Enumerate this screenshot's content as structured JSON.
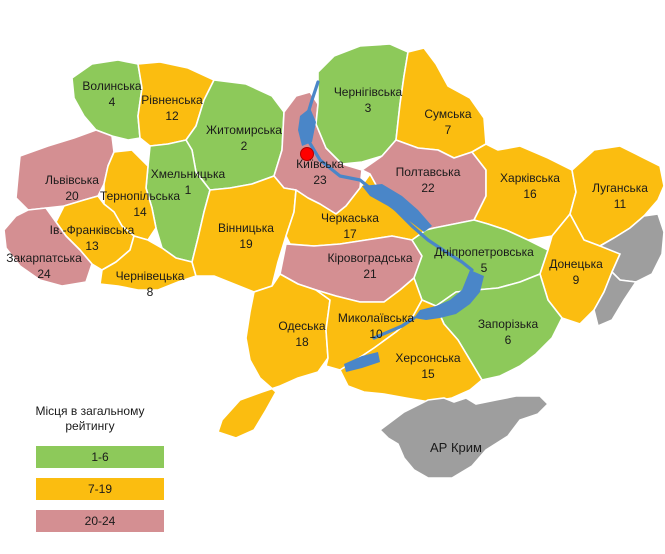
{
  "legend": {
    "title": "Місця в загальному рейтингу",
    "items": [
      {
        "label": "1-6",
        "color": "#8dc95a"
      },
      {
        "label": "7-19",
        "color": "#fbbd10"
      },
      {
        "label": "20-24",
        "color": "#d48f92"
      }
    ]
  },
  "colors": {
    "green": "#8dc95a",
    "orange": "#fbbd10",
    "pink": "#d48f92",
    "gray": "#9e9e9e",
    "water": "#4a86c8",
    "capital": "#ff0000"
  },
  "regions": [
    {
      "key": "volyn",
      "name": "Волинська",
      "rank": "4",
      "category": "green"
    },
    {
      "key": "rivne",
      "name": "Рівненська",
      "rank": "12",
      "category": "orange"
    },
    {
      "key": "zhytomyr",
      "name": "Житомирська",
      "rank": "2",
      "category": "green"
    },
    {
      "key": "kyiv",
      "name": "Київська",
      "rank": "23",
      "category": "pink"
    },
    {
      "key": "chernihiv",
      "name": "Чернігівська",
      "rank": "3",
      "category": "green"
    },
    {
      "key": "sumy",
      "name": "Сумська",
      "rank": "7",
      "category": "orange"
    },
    {
      "key": "lviv",
      "name": "Львівська",
      "rank": "20",
      "category": "pink"
    },
    {
      "key": "khmelnytskyi",
      "name": "Хмельницька",
      "rank": "1",
      "category": "green"
    },
    {
      "key": "ternopil",
      "name": "Тернопільська",
      "rank": "14",
      "category": "orange"
    },
    {
      "key": "ivanofrankivsk",
      "name": "Ів.-Франківська",
      "rank": "13",
      "category": "orange"
    },
    {
      "key": "zakarpattia",
      "name": "Закарпатська",
      "rank": "24",
      "category": "pink"
    },
    {
      "key": "chernivtsi",
      "name": "Чернівецька",
      "rank": "8",
      "category": "orange"
    },
    {
      "key": "vinnytsia",
      "name": "Вінницька",
      "rank": "19",
      "category": "orange"
    },
    {
      "key": "cherkasy",
      "name": "Черкаська",
      "rank": "17",
      "category": "orange"
    },
    {
      "key": "poltava",
      "name": "Полтавська",
      "rank": "22",
      "category": "pink"
    },
    {
      "key": "kharkiv",
      "name": "Харківська",
      "rank": "16",
      "category": "orange"
    },
    {
      "key": "luhansk",
      "name": "Луганська",
      "rank": "11",
      "category": "orange"
    },
    {
      "key": "kirovohrad",
      "name": "Кіровоградська",
      "rank": "21",
      "category": "pink"
    },
    {
      "key": "dnipro",
      "name": "Дніпропетровська",
      "rank": "5",
      "category": "green"
    },
    {
      "key": "donetsk",
      "name": "Донецька",
      "rank": "9",
      "category": "orange"
    },
    {
      "key": "odesa",
      "name": "Одеська",
      "rank": "18",
      "category": "orange"
    },
    {
      "key": "mykolaiv",
      "name": "Миколаївська",
      "rank": "10",
      "category": "orange"
    },
    {
      "key": "zaporizhzhia",
      "name": "Запорізька",
      "rank": "6",
      "category": "green"
    },
    {
      "key": "kherson",
      "name": "Херсонська",
      "rank": "15",
      "category": "orange"
    }
  ],
  "crimea": {
    "name": "АР Крим"
  }
}
